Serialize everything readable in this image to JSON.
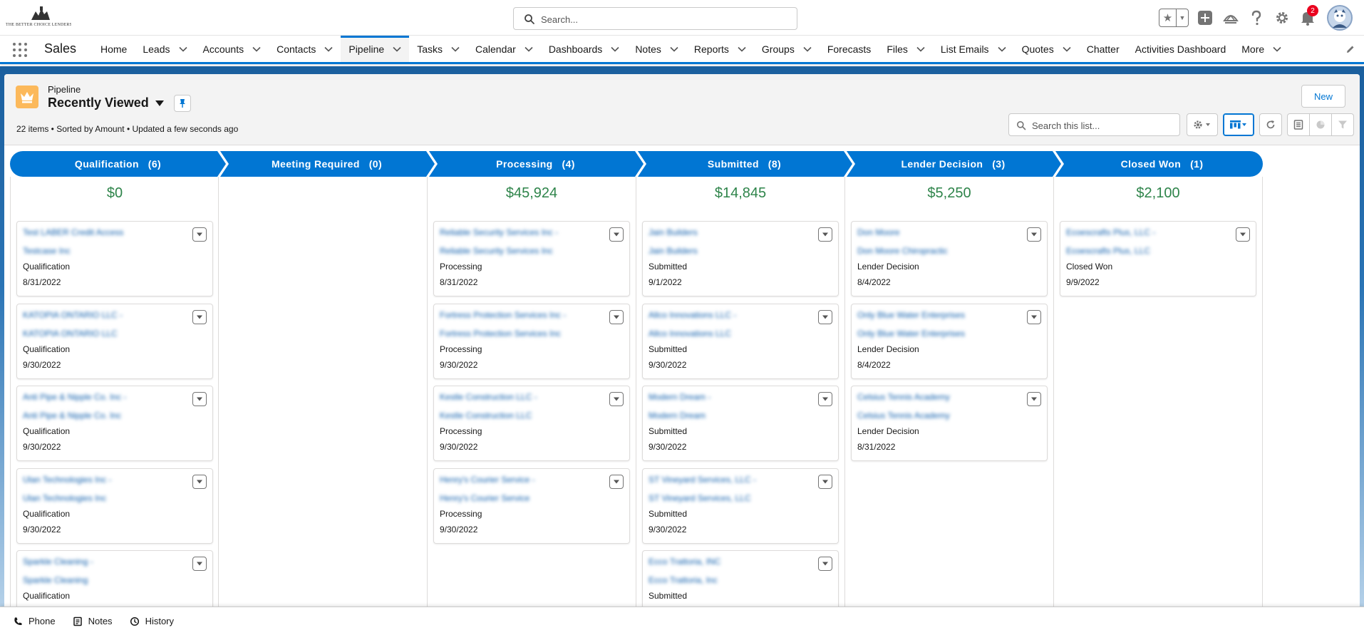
{
  "logo": {
    "text": "THE BETTER CHOICE LENDERS"
  },
  "global_search": {
    "placeholder": "Search..."
  },
  "header": {
    "notification_count": "2"
  },
  "nav": {
    "app_name": "Sales",
    "items": [
      {
        "label": "Home",
        "has_menu": false
      },
      {
        "label": "Leads",
        "has_menu": true
      },
      {
        "label": "Accounts",
        "has_menu": true
      },
      {
        "label": "Contacts",
        "has_menu": true
      },
      {
        "label": "Pipeline",
        "has_menu": true,
        "active": true
      },
      {
        "label": "Tasks",
        "has_menu": true
      },
      {
        "label": "Calendar",
        "has_menu": true
      },
      {
        "label": "Dashboards",
        "has_menu": true
      },
      {
        "label": "Notes",
        "has_menu": true
      },
      {
        "label": "Reports",
        "has_menu": true
      },
      {
        "label": "Groups",
        "has_menu": true
      },
      {
        "label": "Forecasts",
        "has_menu": false
      },
      {
        "label": "Files",
        "has_menu": true
      },
      {
        "label": "List Emails",
        "has_menu": true
      },
      {
        "label": "Quotes",
        "has_menu": true
      },
      {
        "label": "Chatter",
        "has_menu": false
      },
      {
        "label": "Activities Dashboard",
        "has_menu": false
      },
      {
        "label": "More",
        "has_menu": true
      }
    ]
  },
  "list_view": {
    "object_label": "Pipeline",
    "view_name": "Recently Viewed",
    "meta": "22 items • Sorted by Amount • Updated a few seconds ago",
    "new_button": "New",
    "search_placeholder": "Search this list..."
  },
  "stages": [
    {
      "name": "Qualification",
      "count": "(6)",
      "total": "$0",
      "cards": [
        {
          "name": "Test LABER Credit Access",
          "account": "Testcase Inc",
          "stage": "Qualification",
          "date": "8/31/2022"
        },
        {
          "name": "KATOPIA ONTARIO LLC -",
          "account": "KATOPIA ONTARIO LLC",
          "stage": "Qualification",
          "date": "9/30/2022"
        },
        {
          "name": "Anti Pipe & Nipple Co. Inc -",
          "account": "Anti Pipe & Nipple Co. Inc",
          "stage": "Qualification",
          "date": "9/30/2022"
        },
        {
          "name": "Ulan Technologies Inc -",
          "account": "Ulan Technologies Inc",
          "stage": "Qualification",
          "date": "9/30/2022"
        },
        {
          "name": "Sparkle Cleaning -",
          "account": "Sparkle Cleaning",
          "stage": "Qualification",
          "date": ""
        }
      ]
    },
    {
      "name": "Meeting Required",
      "count": "(0)",
      "total": "",
      "cards": []
    },
    {
      "name": "Processing",
      "count": "(4)",
      "total": "$45,924",
      "cards": [
        {
          "name": "Reliable Security Services Inc -",
          "account": "Reliable Security Services Inc",
          "stage": "Processing",
          "date": "8/31/2022"
        },
        {
          "name": "Fortress Protection Services Inc -",
          "account": "Fortress Protection Services Inc",
          "stage": "Processing",
          "date": "9/30/2022"
        },
        {
          "name": "Kestle Construction LLC -",
          "account": "Kestle Construction LLC",
          "stage": "Processing",
          "date": "9/30/2022"
        },
        {
          "name": "Henry's Courier Service -",
          "account": "Henry's Courier Service",
          "stage": "Processing",
          "date": "9/30/2022"
        }
      ]
    },
    {
      "name": "Submitted",
      "count": "(8)",
      "total": "$14,845",
      "cards": [
        {
          "name": "Jain Builders",
          "account": "Jain Builders",
          "stage": "Submitted",
          "date": "9/1/2022"
        },
        {
          "name": "Allco Innovations LLC -",
          "account": "Allco Innovations LLC",
          "stage": "Submitted",
          "date": "9/30/2022"
        },
        {
          "name": "Modern Dream -",
          "account": "Modern Dream",
          "stage": "Submitted",
          "date": "9/30/2022"
        },
        {
          "name": "ST Vineyard Services, LLC -",
          "account": "ST Vineyard Services, LLC",
          "stage": "Submitted",
          "date": "9/30/2022"
        },
        {
          "name": "Ecco Trattoria, INC",
          "account": "Ecco Trattoria, Inc",
          "stage": "Submitted",
          "date": ""
        }
      ]
    },
    {
      "name": "Lender Decision",
      "count": "(3)",
      "total": "$5,250",
      "cards": [
        {
          "name": "Don Moore",
          "account": "Don Moore Chiropractic",
          "stage": "Lender Decision",
          "date": "8/4/2022"
        },
        {
          "name": "Only Blue Water Enterprises",
          "account": "Only Blue Water Enterprises",
          "stage": "Lender Decision",
          "date": "8/4/2022"
        },
        {
          "name": "Celsius Tennis Academy",
          "account": "Celsius Tennis Academy",
          "stage": "Lender Decision",
          "date": "8/31/2022"
        }
      ]
    },
    {
      "name": "Closed Won",
      "count": "(1)",
      "total": "$2,100",
      "cards": [
        {
          "name": "Ecoescrafts Plus, LLC -",
          "account": "Ecoescrafts Plus, LLC",
          "stage": "Closed Won",
          "date": "9/9/2022"
        }
      ]
    }
  ],
  "utility_bar": {
    "items": [
      {
        "label": "Phone",
        "icon": "phone-icon"
      },
      {
        "label": "Notes",
        "icon": "notes-icon"
      },
      {
        "label": "History",
        "icon": "history-icon"
      }
    ]
  },
  "colors": {
    "brand": "#0176d3",
    "total_green": "#2e844a",
    "link_blue": "#0b5cab",
    "object_icon": "#fcb95b",
    "notification": "#ea001e"
  }
}
